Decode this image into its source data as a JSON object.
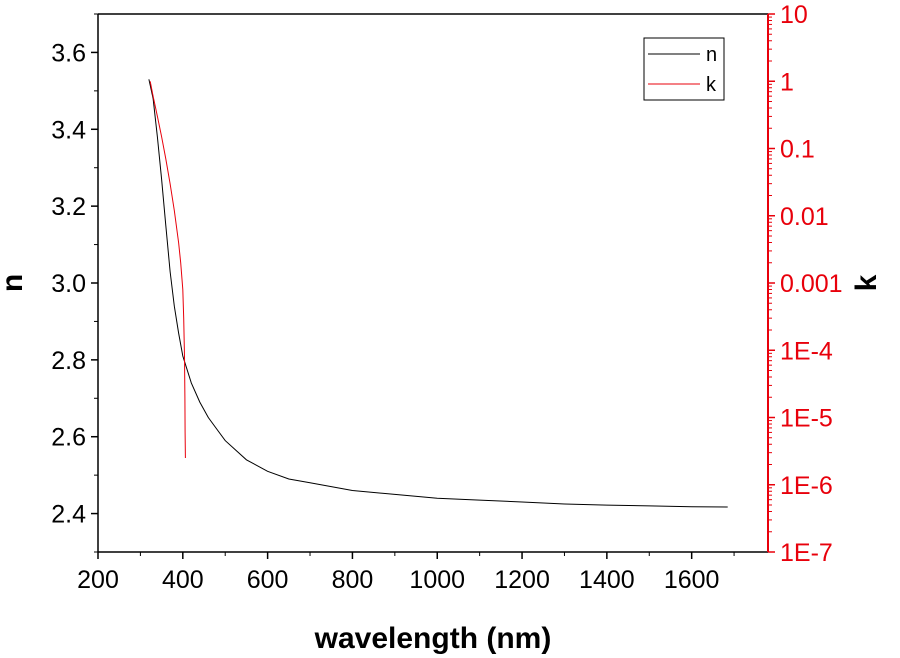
{
  "chart_data": {
    "type": "line",
    "xlabel": "wavelength (nm)",
    "ylabel_left": "n",
    "ylabel_right": "k",
    "xlim": [
      200,
      1780
    ],
    "ylim_left": [
      2.3,
      3.7
    ],
    "ylim_right": [
      1e-07,
      10
    ],
    "right_axis_scale": "log",
    "x_ticks": [
      200,
      400,
      600,
      800,
      1000,
      1200,
      1400,
      1600
    ],
    "x_tick_labels": [
      "200",
      "400",
      "600",
      "800",
      "1000",
      "1200",
      "1400",
      "1600"
    ],
    "left_ticks": [
      2.4,
      2.6,
      2.8,
      3.0,
      3.2,
      3.4,
      3.6
    ],
    "left_tick_labels": [
      "2.4",
      "2.6",
      "2.8",
      "3.0",
      "3.2",
      "3.4",
      "3.6"
    ],
    "right_ticks": [
      1e-07,
      1e-06,
      1e-05,
      0.0001,
      0.001,
      0.01,
      0.1,
      1,
      10
    ],
    "right_tick_labels": [
      "1E-7",
      "1E-6",
      "1E-5",
      "1E-4",
      "0.001",
      "0.01",
      "0.1",
      "1",
      "10"
    ],
    "legend": {
      "position": "top-right",
      "entries": [
        "n",
        "k"
      ]
    },
    "grid": false,
    "colors": {
      "n": "#000000",
      "k": "#e8000b",
      "right_axis": "#e8000b"
    },
    "series": [
      {
        "name": "n",
        "axis": "left",
        "x": [
          320,
          330,
          340,
          350,
          360,
          370,
          380,
          390,
          400,
          420,
          440,
          460,
          480,
          500,
          550,
          600,
          650,
          700,
          800,
          900,
          1000,
          1100,
          1200,
          1300,
          1400,
          1500,
          1600,
          1685
        ],
        "y": [
          3.53,
          3.48,
          3.38,
          3.27,
          3.15,
          3.03,
          2.94,
          2.87,
          2.81,
          2.74,
          2.69,
          2.65,
          2.62,
          2.59,
          2.54,
          2.51,
          2.49,
          2.48,
          2.46,
          2.45,
          2.44,
          2.435,
          2.43,
          2.425,
          2.422,
          2.42,
          2.418,
          2.417
        ]
      },
      {
        "name": "k",
        "axis": "right",
        "x": [
          323,
          330,
          340,
          350,
          360,
          370,
          380,
          390,
          395,
          400,
          402,
          404,
          405,
          405.5,
          406
        ],
        "y": [
          1.0,
          0.6,
          0.3,
          0.15,
          0.07,
          0.03,
          0.012,
          0.004,
          0.002,
          0.0008,
          0.0003,
          8e-05,
          2e-05,
          6e-06,
          2.5e-06
        ]
      }
    ]
  }
}
